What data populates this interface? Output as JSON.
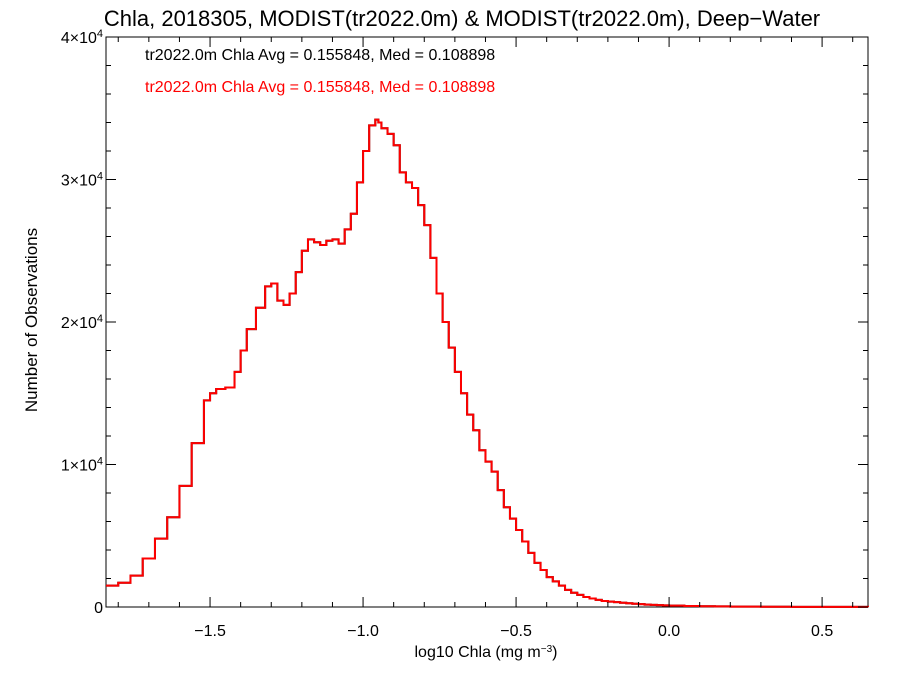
{
  "chart_data": {
    "type": "line",
    "style": "histogram-step",
    "title": "Chla, 2018305, MODIST(tr2022.0m) & MODIST(tr2022.0m), Deep−Water",
    "xlabel": "log10 Chla (mg m",
    "xlabel_sup": "−3",
    "xlabel_close": ")",
    "ylabel": "Number of Observations",
    "xlim": [
      -1.84,
      0.65
    ],
    "ylim": [
      0,
      40000
    ],
    "x_ticks": [
      {
        "value": -1.5,
        "label": "−1.5"
      },
      {
        "value": -1.0,
        "label": "−1.0"
      },
      {
        "value": -0.5,
        "label": "−0.5"
      },
      {
        "value": 0.0,
        "label": "0.0"
      },
      {
        "value": 0.5,
        "label": "0.5"
      }
    ],
    "y_ticks": [
      {
        "value": 0,
        "mant": "0",
        "exp": ""
      },
      {
        "value": 10000,
        "mant": "1×10",
        "exp": "4"
      },
      {
        "value": 20000,
        "mant": "2×10",
        "exp": "4"
      },
      {
        "value": 30000,
        "mant": "3×10",
        "exp": "4"
      },
      {
        "value": 40000,
        "mant": "4×10",
        "exp": "4"
      }
    ],
    "annotations": [
      {
        "text": "tr2022.0m Chla Avg = 0.155848, Med = 0.108898",
        "color": "#000000"
      },
      {
        "text": "tr2022.0m Chla Avg = 0.155848, Med = 0.108898",
        "color": "#ff0000"
      }
    ],
    "series": [
      {
        "color": "#000000",
        "x": [
          -1.84,
          -1.8,
          -1.76,
          -1.72,
          -1.68,
          -1.64,
          -1.6,
          -1.56,
          -1.52,
          -1.5,
          -1.48,
          -1.45,
          -1.42,
          -1.4,
          -1.38,
          -1.35,
          -1.32,
          -1.3,
          -1.28,
          -1.26,
          -1.24,
          -1.22,
          -1.2,
          -1.18,
          -1.16,
          -1.14,
          -1.12,
          -1.1,
          -1.08,
          -1.06,
          -1.04,
          -1.02,
          -1.0,
          -0.98,
          -0.96,
          -0.95,
          -0.94,
          -0.92,
          -0.9,
          -0.88,
          -0.86,
          -0.84,
          -0.82,
          -0.8,
          -0.78,
          -0.76,
          -0.74,
          -0.72,
          -0.7,
          -0.68,
          -0.66,
          -0.64,
          -0.62,
          -0.6,
          -0.58,
          -0.56,
          -0.54,
          -0.52,
          -0.5,
          -0.48,
          -0.46,
          -0.44,
          -0.42,
          -0.4,
          -0.38,
          -0.36,
          -0.34,
          -0.32,
          -0.3,
          -0.28,
          -0.26,
          -0.24,
          -0.22,
          -0.2,
          -0.18,
          -0.16,
          -0.14,
          -0.12,
          -0.1,
          -0.08,
          -0.06,
          -0.04,
          -0.02,
          0.0,
          0.05,
          0.1,
          0.15,
          0.2,
          0.3,
          0.4,
          0.5,
          0.6,
          0.65
        ],
        "y": [
          1500,
          1700,
          2200,
          3400,
          4800,
          6300,
          8500,
          11500,
          14500,
          15000,
          15300,
          15400,
          16500,
          18000,
          19500,
          21000,
          22500,
          22700,
          21500,
          21200,
          22000,
          23500,
          25000,
          25800,
          25600,
          25400,
          25700,
          25800,
          25500,
          26500,
          27600,
          29800,
          32000,
          33800,
          34200,
          34000,
          33600,
          33200,
          32400,
          30500,
          29800,
          29400,
          28200,
          26800,
          24500,
          22000,
          20000,
          18200,
          16500,
          15000,
          13500,
          12400,
          11000,
          10200,
          9500,
          8200,
          7000,
          6200,
          5400,
          4600,
          3800,
          3100,
          2600,
          2100,
          1800,
          1500,
          1200,
          1000,
          850,
          700,
          600,
          500,
          420,
          380,
          340,
          300,
          260,
          230,
          200,
          170,
          150,
          130,
          110,
          100,
          70,
          50,
          40,
          30,
          20,
          12,
          8,
          5,
          3
        ]
      },
      {
        "color": "#ff0000",
        "x": [
          -1.84,
          -1.8,
          -1.76,
          -1.72,
          -1.68,
          -1.64,
          -1.6,
          -1.56,
          -1.52,
          -1.5,
          -1.48,
          -1.45,
          -1.42,
          -1.4,
          -1.38,
          -1.35,
          -1.32,
          -1.3,
          -1.28,
          -1.26,
          -1.24,
          -1.22,
          -1.2,
          -1.18,
          -1.16,
          -1.14,
          -1.12,
          -1.1,
          -1.08,
          -1.06,
          -1.04,
          -1.02,
          -1.0,
          -0.98,
          -0.96,
          -0.95,
          -0.94,
          -0.92,
          -0.9,
          -0.88,
          -0.86,
          -0.84,
          -0.82,
          -0.8,
          -0.78,
          -0.76,
          -0.74,
          -0.72,
          -0.7,
          -0.68,
          -0.66,
          -0.64,
          -0.62,
          -0.6,
          -0.58,
          -0.56,
          -0.54,
          -0.52,
          -0.5,
          -0.48,
          -0.46,
          -0.44,
          -0.42,
          -0.4,
          -0.38,
          -0.36,
          -0.34,
          -0.32,
          -0.3,
          -0.28,
          -0.26,
          -0.24,
          -0.22,
          -0.2,
          -0.18,
          -0.16,
          -0.14,
          -0.12,
          -0.1,
          -0.08,
          -0.06,
          -0.04,
          -0.02,
          0.0,
          0.05,
          0.1,
          0.15,
          0.2,
          0.3,
          0.4,
          0.5,
          0.6,
          0.65
        ],
        "y": [
          1500,
          1700,
          2200,
          3400,
          4800,
          6300,
          8500,
          11500,
          14500,
          15000,
          15300,
          15400,
          16500,
          18000,
          19500,
          21000,
          22500,
          22700,
          21500,
          21200,
          22000,
          23500,
          25000,
          25800,
          25600,
          25400,
          25700,
          25800,
          25500,
          26500,
          27600,
          29800,
          32000,
          33800,
          34200,
          34000,
          33600,
          33200,
          32400,
          30500,
          29800,
          29400,
          28200,
          26800,
          24500,
          22000,
          20000,
          18200,
          16500,
          15000,
          13500,
          12400,
          11000,
          10200,
          9500,
          8200,
          7000,
          6200,
          5400,
          4600,
          3800,
          3100,
          2600,
          2100,
          1800,
          1500,
          1200,
          1000,
          850,
          700,
          600,
          500,
          420,
          380,
          340,
          300,
          260,
          230,
          200,
          170,
          150,
          130,
          110,
          100,
          70,
          50,
          40,
          30,
          20,
          12,
          8,
          5,
          3
        ]
      }
    ]
  }
}
